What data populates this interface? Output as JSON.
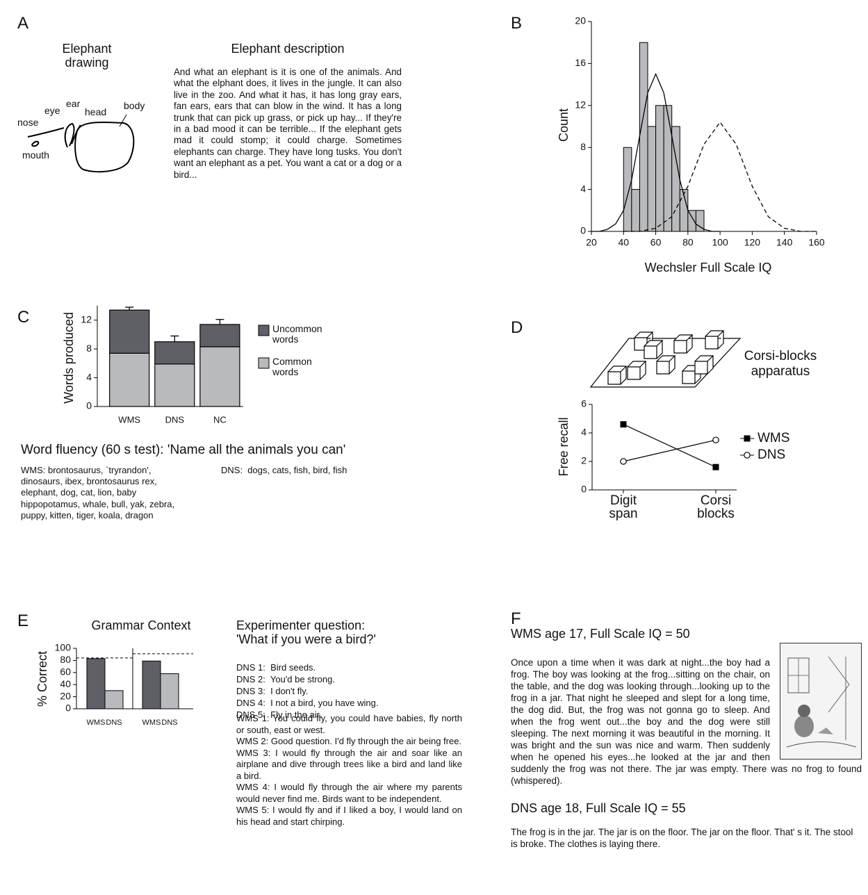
{
  "panel_labels": [
    "A",
    "B",
    "C",
    "D",
    "E",
    "F"
  ],
  "panel_a": {
    "drawing_title": "Elephant drawing",
    "drawing_labels": [
      "nose",
      "eye",
      "ear",
      "head",
      "body",
      "mouth"
    ],
    "description_title": "Elephant description",
    "description": "And what an elephant is it is one of the animals. And what the elphant does, it lives in the jungle. It can also live in the zoo. And what it has, it has long gray ears, fan ears, ears that can blow in the wind. It has a long trunk that can pick up grass, or pick up hay... If they're in a bad mood it can be terrible... If the elephant gets mad it could stomp; it could charge. Sometimes elephants can charge. They have long tusks. You don't want an elephant as a pet. You want a cat or a dog or a bird..."
  },
  "panel_c_text": {
    "title": "Word fluency (60 s test): 'Name all the animals you can'",
    "wms": "WMS: brontosaurus, `tryrandon', dinosaurs, ibex, brontosaurus rex, elephant, dog, cat, lion, baby hippopotamus, whale, bull, yak, zebra, puppy, kitten, tiger, koala, dragon",
    "dns": "DNS:  dogs, cats, fish, bird, fish"
  },
  "panel_d_text": {
    "apparatus": "Corsi-blocks apparatus"
  },
  "panel_e_text": {
    "heading": "Experimenter question:",
    "question": "'What if you were a bird?'",
    "dns_answers": [
      "DNS 1:  Bird seeds.",
      "DNS 2:  You'd be strong.",
      "DNS 3:  I don't fly.",
      "DNS 4:  I not a bird, you have wing.",
      "DNS 5:  Fly in the air."
    ],
    "wms_answers": [
      "WMS 1:  You could fly, you could have babies, fly north or south, east or west.",
      "WMS 2:   Good question. I'd fly through the air being free.",
      "WMS 3: I would fly through the air and soar like an airplane and dive through trees like a bird and land like a bird.",
      "WMS 4: I would fly through the air where my parents would never find me. Birds want to be independent.",
      "WMS 5:  I would fly and if I liked a boy, I would land on his head and start chirping."
    ]
  },
  "panel_f": {
    "wms_heading": "WMS age 17, Full Scale IQ = 50",
    "wms_story": "Once upon a time when it was dark at night...the boy had a frog. The boy was looking at the frog...sitting on the chair, on the table, and the dog was looking through...looking up to the frog in a jar. That night he sleeped and slept for a long time, the dog did. But, the frog was not gonna go to sleep. And when the frog went out...the boy and the dog were still sleeping. The next morning it was beautiful in the morning. It was bright and the sun was nice and warm. Then suddenly when he opened his eyes...he looked at the jar and then suddenly the frog was not there. The jar was empty. There was no frog to found (whispered).",
    "dns_heading": "DNS age 18, Full Scale IQ = 55",
    "dns_story": "The frog is in the jar. The jar is on the floor. The jar on the floor. That' s it. The stool is broke. The clothes is laying there."
  },
  "chart_data": [
    {
      "type": "histogram",
      "xlabel": "Wechsler Full Scale IQ",
      "ylabel": "Count",
      "bins": [
        40,
        45,
        50,
        55,
        60,
        65,
        70,
        75,
        80,
        85,
        90
      ],
      "counts": [
        8,
        4,
        18,
        10,
        12,
        12,
        10,
        4,
        2,
        2
      ],
      "color": "#b9babd",
      "xlim": [
        20,
        160
      ],
      "xticks": [
        20,
        40,
        60,
        80,
        100,
        120,
        140,
        160
      ],
      "ylim": [
        0,
        20
      ],
      "yticks": [
        0,
        4,
        8,
        12,
        16,
        20
      ],
      "curves": [
        {
          "style": "solid",
          "x": [
            20,
            25,
            30,
            35,
            40,
            45,
            50,
            55,
            60,
            65,
            70,
            75,
            80,
            85,
            90,
            95,
            100
          ],
          "values": [
            0.0,
            0.0,
            0.2,
            0.7,
            2.0,
            4.9,
            9.1,
            13.2,
            15,
            13.2,
            9.1,
            4.9,
            2.0,
            0.7,
            0.2,
            0.0,
            0.0
          ]
        },
        {
          "style": "dashed",
          "x": [
            40,
            50,
            60,
            70,
            80,
            90,
            100,
            110,
            120,
            130,
            140,
            150,
            160
          ],
          "values": [
            0.0,
            0.0,
            0.3,
            1.4,
            4.3,
            8.3,
            10.4,
            8.3,
            4.3,
            1.4,
            0.3,
            0.0,
            0.0
          ]
        }
      ]
    },
    {
      "type": "stacked_bar",
      "ylabel": "Words produced",
      "categories": [
        "WMS",
        "DNS",
        "NC"
      ],
      "series": [
        {
          "name": "Common words",
          "color": "#b9babd",
          "error_color": "#ffffff",
          "values": [
            7.4,
            5.9,
            8.3
          ],
          "errors": [
            0.6,
            0.7,
            0.7
          ]
        },
        {
          "name": "Uncommon words",
          "color": "#5f6066",
          "error_color": "#000000",
          "values": [
            6.0,
            3.1,
            3.1
          ],
          "errors": [
            0.4,
            0.8,
            0.7
          ]
        }
      ],
      "ylim": [
        0,
        14
      ],
      "yticks": [
        0,
        4,
        8,
        12
      ],
      "legend": "right"
    },
    {
      "type": "line",
      "ylabel": "Free recall",
      "categories": [
        "Digit span",
        "Corsi blocks"
      ],
      "series": [
        {
          "name": "WMS",
          "color": "#000000",
          "marker": "square",
          "values": [
            4.6,
            1.6
          ]
        },
        {
          "name": "DNS",
          "color": "#000000",
          "marker": "open-circle",
          "values": [
            2.0,
            3.5
          ]
        }
      ],
      "ylim": [
        0,
        6
      ],
      "yticks": [
        0,
        2,
        4,
        6
      ],
      "legend": "right"
    },
    {
      "type": "bar",
      "title": "Grammar Context",
      "ylabel": "% Correct",
      "categories": [
        "WMS",
        "DNS",
        "WMS",
        "DNS"
      ],
      "values": [
        83,
        30,
        79,
        58
      ],
      "colors": [
        "#5f6066",
        "#b9babd",
        "#5f6066",
        "#b9babd"
      ],
      "group_size": 2,
      "reference_lines": [
        84,
        91
      ],
      "ylim": [
        0,
        100
      ],
      "yticks": [
        0,
        20,
        40,
        60,
        80,
        100
      ]
    }
  ]
}
